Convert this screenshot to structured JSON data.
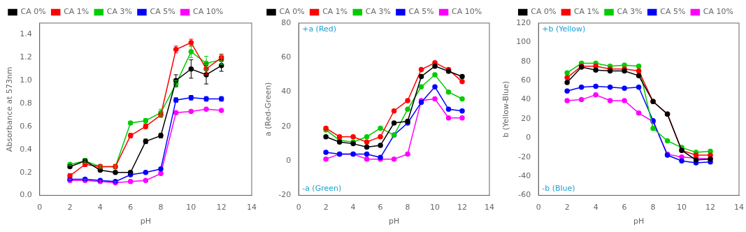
{
  "chart_data": [
    {
      "type": "line",
      "xlabel": "pH",
      "ylabel": "Absorbance at 573nm",
      "x": [
        2,
        3,
        4,
        5,
        6,
        7,
        8,
        9,
        10,
        11,
        12
      ],
      "series": [
        {
          "name": "CA 0%",
          "color": "black",
          "values": [
            0.25,
            0.3,
            0.22,
            0.2,
            0.2,
            0.47,
            0.52,
            1.0,
            1.1,
            1.05,
            1.13
          ],
          "yerr": [
            0.01,
            0.02,
            0.01,
            0.01,
            0.01,
            0.02,
            0.02,
            0.05,
            0.08,
            0.08,
            0.05
          ]
        },
        {
          "name": "CA 1%",
          "color": "red",
          "values": [
            0.17,
            0.27,
            0.25,
            0.25,
            0.52,
            0.6,
            0.7,
            1.27,
            1.33,
            1.1,
            1.2
          ],
          "yerr": [
            0.02,
            0.02,
            0.02,
            0.02,
            0.02,
            0.02,
            0.02,
            0.03,
            0.03,
            0.05,
            0.03
          ]
        },
        {
          "name": "CA 3%",
          "color": "#00cc00",
          "values": [
            0.27,
            0.3,
            0.25,
            0.25,
            0.63,
            0.65,
            0.72,
            0.97,
            1.25,
            1.15,
            1.18
          ],
          "yerr": [
            0.01,
            0.02,
            0.01,
            0.01,
            0.01,
            0.02,
            0.03,
            0.03,
            0.05,
            0.06,
            0.04
          ]
        },
        {
          "name": "CA 5%",
          "color": "blue",
          "values": [
            0.14,
            0.14,
            0.13,
            0.12,
            0.18,
            0.2,
            0.23,
            0.83,
            0.85,
            0.84,
            0.84
          ],
          "yerr": [
            0.01,
            0.01,
            0.01,
            0.01,
            0.01,
            0.01,
            0.01,
            0.02,
            0.02,
            0.02,
            0.02
          ]
        },
        {
          "name": "CA 10%",
          "color": "magenta",
          "values": [
            0.13,
            0.13,
            0.12,
            0.11,
            0.12,
            0.13,
            0.19,
            0.72,
            0.73,
            0.75,
            0.74
          ],
          "yerr": [
            0.01,
            0.01,
            0.01,
            0.01,
            0.01,
            0.01,
            0.01,
            0.01,
            0.01,
            0.01,
            0.01
          ]
        }
      ],
      "xlim": [
        0,
        14
      ],
      "xticks": [
        0,
        2,
        4,
        6,
        8,
        10,
        12,
        14
      ],
      "ylim": [
        0,
        1.5
      ],
      "yticks": [
        {
          "value": 0,
          "label": "0.0"
        },
        0.2,
        0.4,
        0.6,
        0.8,
        {
          "value": 1,
          "label": "1.0"
        },
        1.2,
        1.4
      ],
      "legend": "upper left",
      "grid": false,
      "marker": "circle"
    },
    {
      "type": "line",
      "xlabel": "pH",
      "ylabel": "a (Red-Green)",
      "x": [
        2,
        3,
        4,
        5,
        6,
        7,
        8,
        9,
        10,
        11,
        12
      ],
      "series": [
        {
          "name": "CA 0%",
          "color": "black",
          "values": [
            14,
            11,
            10,
            8,
            9,
            22,
            23,
            49,
            55,
            52,
            49
          ]
        },
        {
          "name": "CA 1%",
          "color": "red",
          "values": [
            19,
            14,
            14,
            11,
            14,
            29,
            35,
            53,
            57,
            53,
            46
          ]
        },
        {
          "name": "CA 3%",
          "color": "#00cc00",
          "values": [
            18,
            12,
            11,
            14,
            19,
            15,
            30,
            43,
            50,
            40,
            36
          ]
        },
        {
          "name": "CA 5%",
          "color": "blue",
          "values": [
            5,
            4,
            4,
            4,
            2,
            15,
            22,
            34,
            43,
            30,
            29
          ]
        },
        {
          "name": "CA 10%",
          "color": "magenta",
          "values": [
            1,
            4,
            4,
            1,
            1,
            1,
            4,
            35,
            36,
            25,
            25
          ]
        }
      ],
      "xlim": [
        0,
        14
      ],
      "xticks": [
        0,
        2,
        4,
        6,
        8,
        10,
        12,
        14
      ],
      "ylim": [
        -20,
        80
      ],
      "yticks": [
        -20,
        0,
        20,
        40,
        60,
        80
      ],
      "annotations": [
        {
          "text": "+a (Red)",
          "color": "#1a9fd4"
        },
        {
          "text": "-a (Green)",
          "color": "#1a9fd4"
        }
      ],
      "legend": "upper left",
      "grid": false,
      "marker": "circle"
    },
    {
      "type": "line",
      "xlabel": "pH",
      "ylabel": "b (Yellow-Blue)",
      "x": [
        2,
        3,
        4,
        5,
        6,
        7,
        8,
        9,
        10,
        11,
        12
      ],
      "series": [
        {
          "name": "CA 0%",
          "color": "black",
          "values": [
            58,
            74,
            71,
            70,
            70,
            65,
            38,
            25,
            -13,
            -23,
            -22
          ]
        },
        {
          "name": "CA 1%",
          "color": "red",
          "values": [
            63,
            75,
            75,
            72,
            72,
            70,
            38,
            25,
            -13,
            -18,
            -18
          ]
        },
        {
          "name": "CA 3%",
          "color": "#00cc00",
          "values": [
            68,
            78,
            78,
            75,
            76,
            75,
            10,
            -3,
            -10,
            -15,
            -14
          ]
        },
        {
          "name": "CA 5%",
          "color": "blue",
          "values": [
            49,
            53,
            54,
            53,
            52,
            53,
            18,
            -18,
            -24,
            -26,
            -25
          ]
        },
        {
          "name": "CA 10%",
          "color": "magenta",
          "values": [
            39,
            40,
            45,
            39,
            39,
            26,
            17,
            -17,
            -20,
            -21,
            -22
          ]
        }
      ],
      "xlim": [
        0,
        14
      ],
      "xticks": [
        0,
        2,
        4,
        6,
        8,
        10,
        12,
        14
      ],
      "ylim": [
        -60,
        120
      ],
      "yticks": [
        -60,
        -40,
        -20,
        0,
        20,
        40,
        60,
        80,
        100,
        120
      ],
      "annotations": [
        {
          "text": "+b (Yellow)",
          "color": "#1a9fd4"
        },
        {
          "text": "-b (Blue)",
          "color": "#1a9fd4"
        }
      ],
      "legend": "upper right",
      "grid": false,
      "marker": "circle"
    }
  ]
}
